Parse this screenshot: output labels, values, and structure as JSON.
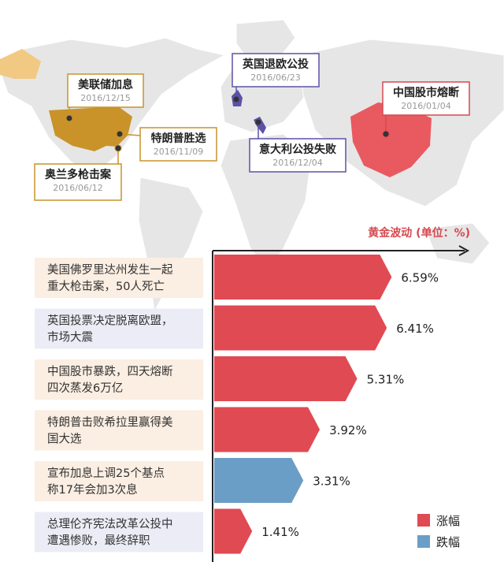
{
  "map_events": [
    {
      "title": "美联储加息",
      "date": "2016/12/15"
    },
    {
      "title": "特朗普胜选",
      "date": "2016/11/09"
    },
    {
      "title": "奥兰多枪击案",
      "date": "2016/06/12"
    },
    {
      "title": "英国退欧公投",
      "date": "2016/06/23"
    },
    {
      "title": "意大利公投失败",
      "date": "2016/12/04"
    },
    {
      "title": "中国股市熔断",
      "date": "2016/01/04"
    }
  ],
  "colors": {
    "rise": "#e04a53",
    "fall": "#6a9ec6",
    "gold": "#c9932a",
    "purple": "#5b52a8",
    "red_label": "#d7484f"
  },
  "chart_data": {
    "type": "bar",
    "title": "黄金波动 (单位：%)",
    "categories": [
      "美国佛罗里达州发生一起重大枪击案，50人死亡",
      "英国投票决定脱离欧盟，市场大震",
      "中国股市暴跌，四天熔断四次蒸发6万亿",
      "特朗普击败希拉里赢得美国大选",
      "宣布加息上调25个基点称17年会加3次息",
      "总理伦齐宪法改革公投中遭遇惨败，最终辞职"
    ],
    "category_lines": [
      [
        "美国佛罗里达州发生一起",
        "重大枪击案，50人死亡"
      ],
      [
        "英国投票决定脱离欧盟，",
        "市场大震"
      ],
      [
        "中国股市暴跌，四天熔断",
        "四次蒸发6万亿"
      ],
      [
        "特朗普击败希拉里赢得美",
        "国大选"
      ],
      [
        "宣布加息上调25个基点",
        "称17年会加3次息"
      ],
      [
        "总理伦齐宪法改革公投中",
        "遭遇惨败，最终辞职"
      ]
    ],
    "values": [
      6.59,
      6.41,
      5.31,
      3.92,
      3.31,
      1.41
    ],
    "value_labels": [
      "6.59%",
      "6.41%",
      "5.31%",
      "3.92%",
      "3.31%",
      "1.41%"
    ],
    "direction": [
      "涨幅",
      "涨幅",
      "涨幅",
      "涨幅",
      "跌幅",
      "涨幅"
    ],
    "xlim": [
      0,
      8
    ],
    "legend": [
      {
        "name": "涨幅",
        "color": "#e04a53"
      },
      {
        "name": "跌幅",
        "color": "#6a9ec6"
      }
    ],
    "legend_position": "bottom-right"
  }
}
